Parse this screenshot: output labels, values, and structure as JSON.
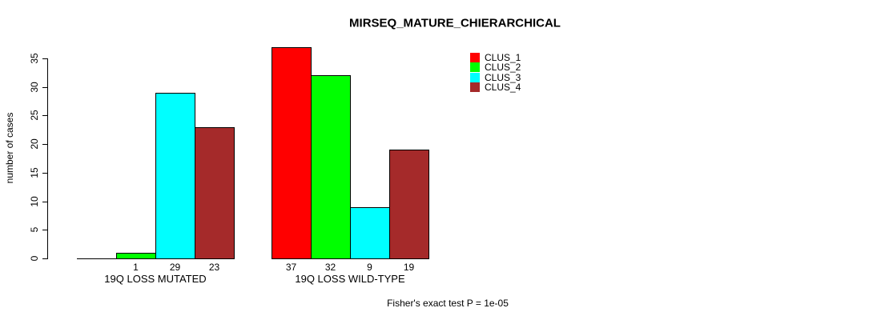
{
  "page": {
    "background": "#ffffff"
  },
  "chart_data": {
    "type": "bar",
    "title": "MIRSEQ_MATURE_CHIERARCHICAL",
    "ylabel": "number of cases",
    "xlabel": "",
    "caption": "Fisher's exact test P = 1e-05",
    "categories": [
      "19Q LOSS MUTATED",
      "19Q LOSS WILD-TYPE"
    ],
    "series": [
      {
        "name": "CLUS_1",
        "color": "#FF0000",
        "values": [
          0,
          37
        ]
      },
      {
        "name": "CLUS_2",
        "color": "#00FF00",
        "values": [
          1,
          32
        ]
      },
      {
        "name": "CLUS_3",
        "color": "#00FFFF",
        "values": [
          29,
          9
        ]
      },
      {
        "name": "CLUS_4",
        "color": "#A52A2A",
        "values": [
          23,
          19
        ]
      }
    ],
    "bar_value_labels": [
      [
        "",
        "1",
        "29",
        "23"
      ],
      [
        "37",
        "32",
        "9",
        "19"
      ]
    ],
    "yticks": [
      0,
      5,
      10,
      15,
      20,
      25,
      30,
      35
    ],
    "ylim": [
      0,
      37
    ],
    "axis_max_tick": 35,
    "bar_border_color": "#000000",
    "legend_position": "top-right",
    "grid": false
  }
}
